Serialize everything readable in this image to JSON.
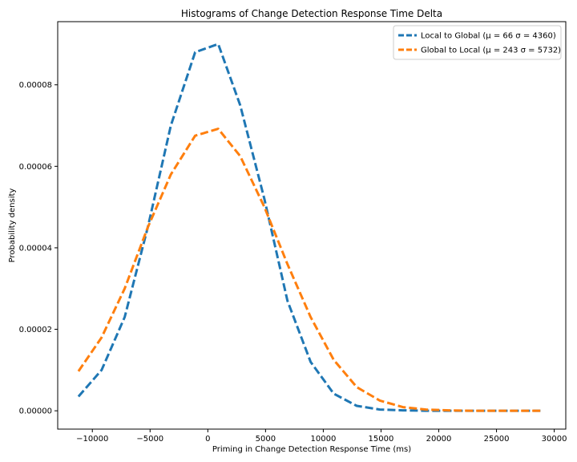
{
  "chart_data": {
    "type": "line",
    "title": "Histograms of Change Detection Response Time Delta",
    "xlabel": "Priming in Change Detection Response Time (ms)",
    "ylabel": "Probability density",
    "xlim": [
      -13000,
      31000
    ],
    "ylim": [
      -4.5e-06,
      9.55e-05
    ],
    "x_ticks": [
      -10000,
      -5000,
      0,
      5000,
      10000,
      15000,
      20000,
      25000,
      30000
    ],
    "x_tick_labels": [
      "−10000",
      "−5000",
      "0",
      "5000",
      "10000",
      "15000",
      "20000",
      "25000",
      "30000"
    ],
    "y_ticks": [
      0,
      2e-05,
      4e-05,
      6e-05,
      8e-05
    ],
    "y_tick_labels": [
      "0.00000",
      "0.00002",
      "0.00004",
      "0.00006",
      "0.00008"
    ],
    "grid": false,
    "legend_position": "top-right",
    "line_style": "dashed",
    "series": [
      {
        "name": "Local to Global (μ = 66 σ = 4360)",
        "color": "#1f77b4",
        "x": [
          -11200,
          -9200,
          -7200,
          -5200,
          -3200,
          -1100,
          900,
          2800,
          4900,
          6900,
          8900,
          10900,
          12900,
          14900,
          16900,
          18900,
          20900,
          22900,
          24900,
          26900,
          28800
        ],
        "y": [
          3.5e-06,
          1e-05,
          2.3e-05,
          4.5e-05,
          7e-05,
          8.8e-05,
          9e-05,
          7.5e-05,
          5.2e-05,
          2.7e-05,
          1.2e-05,
          4.2e-06,
          1.2e-06,
          3e-07,
          1e-07,
          0,
          0,
          0,
          0,
          0,
          0
        ]
      },
      {
        "name": "Global to Local (μ = 243 σ = 5732)",
        "color": "#ff7f0e",
        "x": [
          -11200,
          -9200,
          -7200,
          -5200,
          -3200,
          -1100,
          900,
          2800,
          4900,
          6900,
          8900,
          10900,
          12900,
          14900,
          16900,
          18900,
          20900,
          22900,
          24900,
          26900,
          28800
        ],
        "y": [
          9.7e-06,
          1.8e-05,
          3e-05,
          4.5e-05,
          5.8e-05,
          6.75e-05,
          6.92e-05,
          6.25e-05,
          5e-05,
          3.6e-05,
          2.3e-05,
          1.25e-05,
          5.8e-06,
          2.5e-06,
          9e-07,
          3e-07,
          1e-07,
          0,
          0,
          0,
          0
        ]
      }
    ]
  }
}
